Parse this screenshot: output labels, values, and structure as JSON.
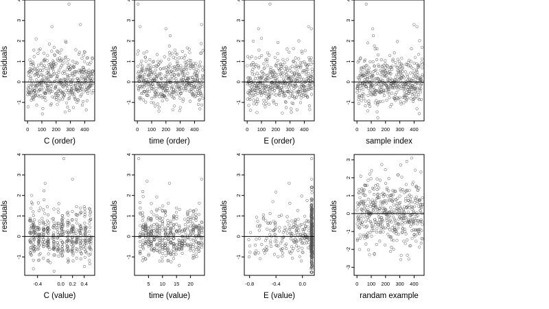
{
  "chart_data": [
    {
      "type": "scatter",
      "xlabel": "C (order)",
      "ylabel": "residuals",
      "xlim": [
        -20,
        470
      ],
      "ylim": [
        -1.9,
        4.0
      ],
      "xticks": [
        0,
        100,
        200,
        300,
        400
      ],
      "xtick_labels": [
        "0",
        "100",
        "200",
        "300",
        "400"
      ],
      "yticks": [
        -1,
        0,
        1,
        2,
        3,
        4
      ],
      "ytick_labels": [
        "-1",
        "0",
        "1",
        "2",
        "3",
        "4"
      ],
      "hline": 0,
      "grid": false,
      "gen": {
        "seed": 11,
        "n": 460,
        "mode": "order",
        "xmin": 1,
        "xmax": 460,
        "outliers": [
          [
            290,
            3.8
          ],
          [
            370,
            2.8
          ],
          [
            170,
            2.7
          ],
          [
            60,
            2.1
          ]
        ]
      }
    },
    {
      "type": "scatter",
      "xlabel": "time (order)",
      "ylabel": "residuals",
      "xlim": [
        -20,
        470
      ],
      "ylim": [
        -1.9,
        4.0
      ],
      "xticks": [
        0,
        100,
        200,
        300,
        400
      ],
      "xtick_labels": [
        "0",
        "100",
        "200",
        "300",
        "400"
      ],
      "yticks": [
        -1,
        0,
        1,
        2,
        3,
        4
      ],
      "ytick_labels": [
        "-1",
        "0",
        "1",
        "2",
        "3",
        "4"
      ],
      "hline": 0,
      "grid": false,
      "gen": {
        "seed": 23,
        "n": 460,
        "mode": "order",
        "xmin": 1,
        "xmax": 460,
        "outliers": [
          [
            5,
            3.8
          ],
          [
            450,
            2.8
          ],
          [
            20,
            2.7
          ],
          [
            200,
            2.6
          ]
        ]
      }
    },
    {
      "type": "scatter",
      "xlabel": "E (order)",
      "ylabel": "residuals",
      "xlim": [
        -20,
        470
      ],
      "ylim": [
        -1.9,
        4.0
      ],
      "xticks": [
        0,
        100,
        200,
        300,
        400
      ],
      "xtick_labels": [
        "0",
        "100",
        "200",
        "300",
        "400"
      ],
      "yticks": [
        -1,
        0,
        1,
        2,
        3,
        4
      ],
      "ytick_labels": [
        "-1",
        "0",
        "1",
        "2",
        "3",
        "4"
      ],
      "hline": 0,
      "grid": false,
      "gen": {
        "seed": 37,
        "n": 460,
        "mode": "order",
        "xmin": 1,
        "xmax": 460,
        "outliers": [
          [
            160,
            3.8
          ],
          [
            80,
            2.6
          ],
          [
            430,
            2.7
          ],
          [
            450,
            2.6
          ]
        ]
      }
    },
    {
      "type": "scatter",
      "xlabel": "sample index",
      "ylabel": "residuals",
      "xlim": [
        -20,
        470
      ],
      "ylim": [
        -1.9,
        4.0
      ],
      "xticks": [
        0,
        100,
        200,
        300,
        400
      ],
      "xtick_labels": [
        "0",
        "100",
        "200",
        "300",
        "400"
      ],
      "yticks": [
        -1,
        0,
        1,
        2,
        3,
        4
      ],
      "ytick_labels": [
        "-1",
        "0",
        "1",
        "2",
        "3",
        "4"
      ],
      "hline": 0,
      "grid": false,
      "gen": {
        "seed": 41,
        "n": 460,
        "mode": "order",
        "xmin": 1,
        "xmax": 460,
        "outliers": [
          [
            65,
            3.8
          ],
          [
            400,
            2.8
          ],
          [
            110,
            2.6
          ],
          [
            420,
            2.7
          ]
        ]
      }
    },
    {
      "type": "scatter",
      "xlabel": "C (value)",
      "ylabel": "residuals",
      "xlim": [
        -0.62,
        0.58
      ],
      "ylim": [
        -1.9,
        4.0
      ],
      "xticks": [
        -0.4,
        0.0,
        0.2,
        0.4
      ],
      "xtick_labels": [
        "-0.4",
        "0.0",
        "0.2",
        "0.4"
      ],
      "yticks": [
        -1,
        0,
        1,
        2,
        3,
        4
      ],
      "ytick_labels": [
        "-1",
        "0",
        "1",
        "2",
        "3",
        "4"
      ],
      "hline": 0,
      "grid": false,
      "gen": {
        "seed": 53,
        "n": 460,
        "mode": "clusters",
        "centers": [
          -0.52,
          -0.46,
          -0.38,
          -0.3,
          -0.22,
          -0.12,
          -0.05,
          0.02,
          0.12,
          0.2,
          0.27,
          0.34,
          0.42,
          0.5
        ],
        "spread": 0.012,
        "outliers": [
          [
            0.05,
            3.8
          ],
          [
            0.2,
            2.8
          ],
          [
            -0.27,
            2.6
          ],
          [
            -0.5,
            2.0
          ]
        ]
      }
    },
    {
      "type": "scatter",
      "xlabel": "time (value)",
      "ylabel": "residuals",
      "xlim": [
        0.0,
        25.0
      ],
      "ylim": [
        -1.9,
        4.0
      ],
      "xticks": [
        5,
        10,
        15,
        20
      ],
      "xtick_labels": [
        "5",
        "10",
        "15",
        "20"
      ],
      "yticks": [
        -1,
        0,
        1,
        2,
        3,
        4
      ],
      "ytick_labels": [
        "-1",
        "0",
        "1",
        "2",
        "3",
        "4"
      ],
      "hline": 0,
      "grid": false,
      "gen": {
        "seed": 67,
        "n": 460,
        "mode": "clusters",
        "centers": [
          2,
          3,
          4,
          5,
          6,
          7,
          8,
          9,
          10,
          11,
          12,
          13,
          14,
          15,
          16,
          17,
          18,
          19,
          20,
          21,
          22,
          23,
          24
        ],
        "spread": 0.08,
        "outliers": [
          [
            1.5,
            3.8
          ],
          [
            24,
            2.8
          ],
          [
            4.5,
            2.7
          ],
          [
            12.5,
            2.6
          ]
        ]
      }
    },
    {
      "type": "scatter",
      "xlabel": "E (value)",
      "ylabel": "residuals",
      "xlim": [
        -0.88,
        0.18
      ],
      "ylim": [
        -1.9,
        4.0
      ],
      "xticks": [
        -0.8,
        -0.4,
        0.0
      ],
      "xtick_labels": [
        "-0.8",
        "-0.4",
        "0.0"
      ],
      "yticks": [
        -1,
        0,
        1,
        2,
        3,
        4
      ],
      "ytick_labels": [
        "-1",
        "0",
        "1",
        "2",
        "3",
        "4"
      ],
      "hline": 0,
      "grid": false,
      "gen": {
        "seed": 79,
        "n": 460,
        "mode": "skew",
        "xmin": -0.86,
        "xmax": 0.14,
        "dense_at": 0.14,
        "dense_frac": 0.55,
        "outliers": [
          [
            0.14,
            3.8
          ],
          [
            -0.2,
            2.6
          ],
          [
            0.14,
            2.8
          ],
          [
            0.14,
            2.4
          ]
        ]
      }
    },
    {
      "type": "scatter",
      "xlabel": "randam example",
      "ylabel": "residuals",
      "xlim": [
        -20,
        470
      ],
      "ylim": [
        -3.45,
        3.3
      ],
      "xticks": [
        0,
        100,
        200,
        300,
        400
      ],
      "xtick_labels": [
        "0",
        "100",
        "200",
        "300",
        "400"
      ],
      "yticks": [
        -3,
        -2,
        -1,
        0,
        1,
        2,
        3
      ],
      "ytick_labels": [
        "-3",
        "-2",
        "-1",
        "0",
        "1",
        "2",
        "3"
      ],
      "hline": 0,
      "grid": false,
      "gen": {
        "seed": 97,
        "n": 460,
        "mode": "normal",
        "xmin": 1,
        "xmax": 460,
        "sd": 1.0,
        "outliers": []
      }
    }
  ],
  "colors": {
    "points": "#555555",
    "axis": "#000000",
    "background": "#ffffff"
  }
}
